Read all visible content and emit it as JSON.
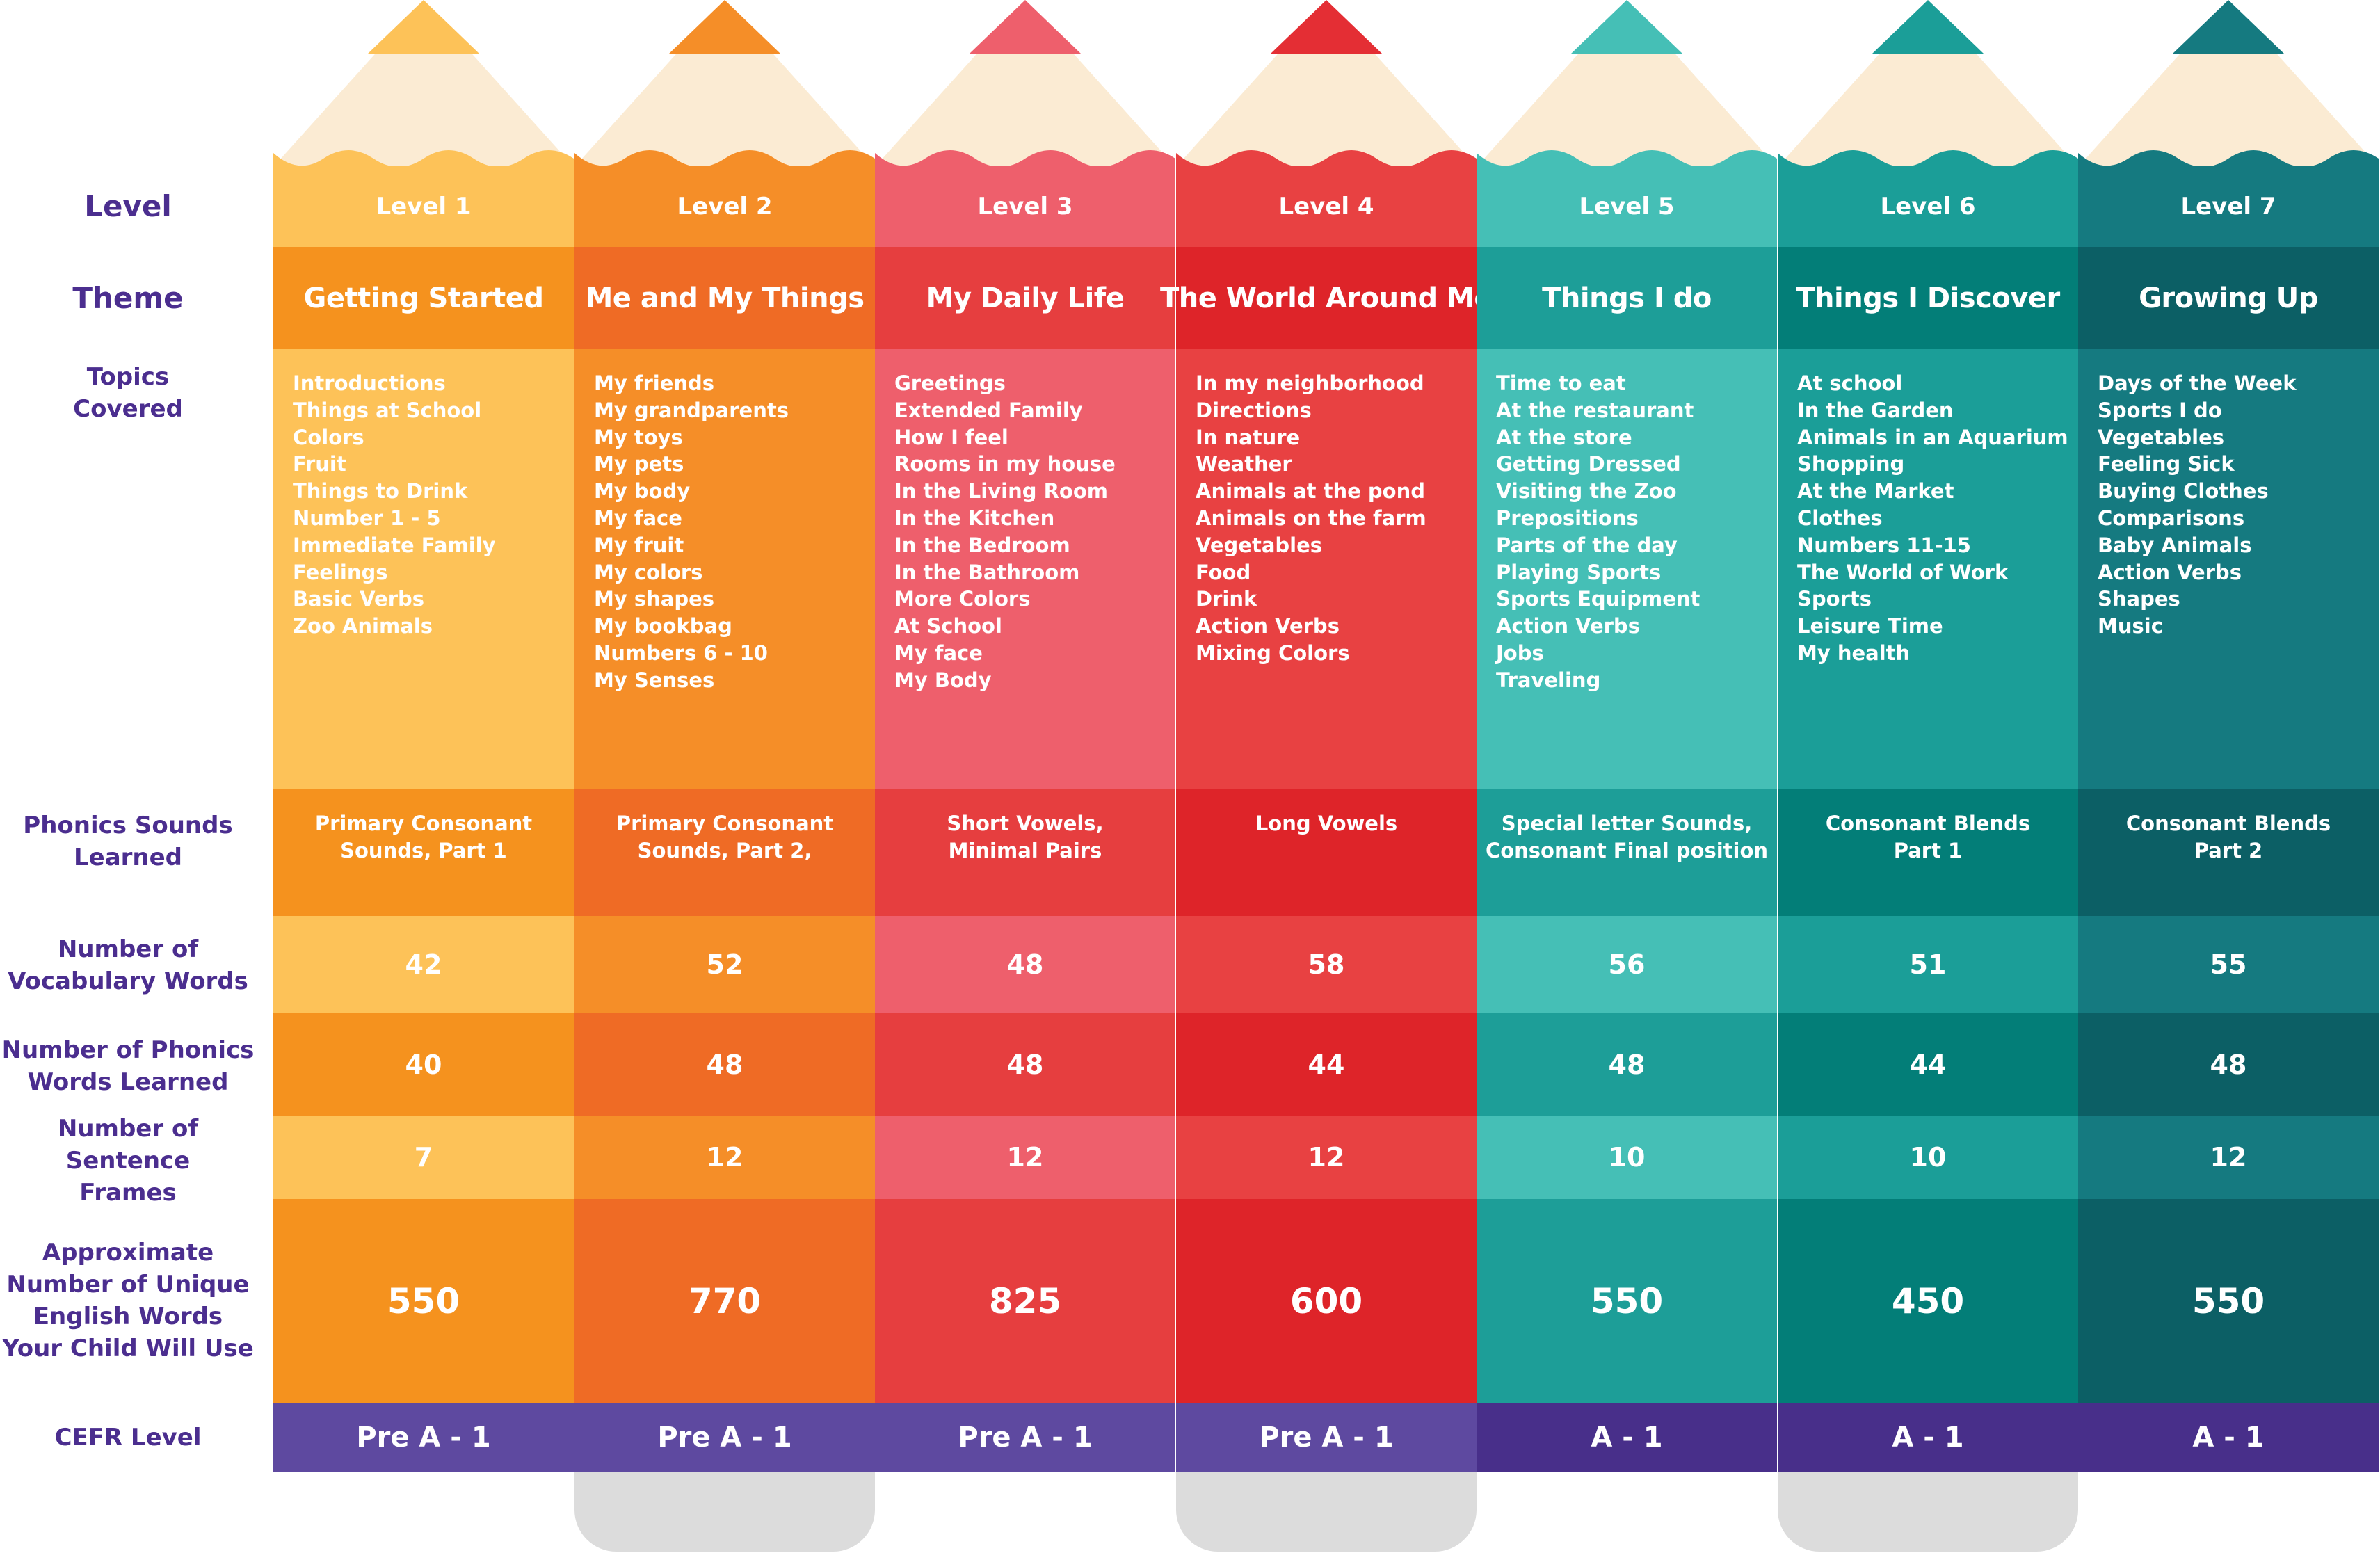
{
  "row_labels": {
    "level": "Level",
    "theme": "Theme",
    "topics": "Topics\nCovered",
    "phonics": "Phonics Sounds\nLearned",
    "vocab": "Number of\nVocabulary Words",
    "phonics_words": "Number of Phonics\nWords Learned",
    "frames": "Number of Sentence\nFrames",
    "unique_words": "Approximate\nNumber of Unique\nEnglish Words\nYour Child Will Use",
    "cefr": "CEFR Level"
  },
  "pencil_wood_color": "#fbebd3",
  "levels": [
    {
      "level": "Level 1",
      "theme": "Getting Started",
      "topics": [
        "Introductions",
        "Things at School",
        "Colors",
        "Fruit",
        "Things to Drink",
        "Number 1 - 5",
        "Immediate Family",
        "Feelings",
        "Basic Verbs",
        "Zoo Animals"
      ],
      "phonics": "Primary Consonant\nSounds, Part 1",
      "vocab": "42",
      "phonics_words": "40",
      "frames": "7",
      "unique_words": "550",
      "cefr": "Pre A - 1",
      "colors": {
        "light": "#fdc258",
        "dark": "#f5921e",
        "tip": "#fdc258",
        "cefr": "#5e49a0",
        "cap": "#ffffff"
      }
    },
    {
      "level": "Level 2",
      "theme": "Me and My Things",
      "topics": [
        "My friends",
        "My grandparents",
        "My toys",
        "My pets",
        "My body",
        "My face",
        "My fruit",
        "My colors",
        "My shapes",
        "My bookbag",
        "Numbers 6 - 10",
        "My Senses"
      ],
      "phonics": "Primary Consonant\nSounds, Part 2,",
      "vocab": "52",
      "phonics_words": "48",
      "frames": "12",
      "unique_words": "770",
      "cefr": "Pre A - 1",
      "colors": {
        "light": "#f58e28",
        "dark": "#ef6b25",
        "tip": "#f58e28",
        "cefr": "#5e49a0",
        "cap": "#dcdcdc"
      }
    },
    {
      "level": "Level 3",
      "theme": "My Daily Life",
      "topics": [
        "Greetings",
        "Extended Family",
        "How I feel",
        "Rooms in my house",
        "In the Living Room",
        "In the Kitchen",
        "In the Bedroom",
        "In the Bathroom",
        "More Colors",
        "At School",
        "My face",
        "My Body"
      ],
      "phonics": "Short Vowels,\nMinimal Pairs",
      "vocab": "48",
      "phonics_words": "48",
      "frames": "12",
      "unique_words": "825",
      "cefr": "Pre A - 1",
      "colors": {
        "light": "#ee5f6c",
        "dark": "#e63e3f",
        "tip": "#ee5f6c",
        "cefr": "#5e49a0",
        "cap": "#ffffff"
      }
    },
    {
      "level": "Level 4",
      "theme": "The World Around Me",
      "topics": [
        "In my neighborhood",
        "Directions",
        "In nature",
        "Weather",
        "Animals at the pond",
        "Animals on the farm",
        "Vegetables",
        "Food",
        "Drink",
        "Action Verbs",
        "Mixing Colors"
      ],
      "phonics": "Long Vowels",
      "vocab": "58",
      "phonics_words": "44",
      "frames": "12",
      "unique_words": "600",
      "cefr": "Pre A - 1",
      "colors": {
        "light": "#e84142",
        "dark": "#de2429",
        "tip": "#e42e34",
        "cefr": "#5e49a0",
        "cap": "#dcdcdc"
      }
    },
    {
      "level": "Level 5",
      "theme": "Things I do",
      "topics": [
        "Time to eat",
        "At the restaurant",
        "At the store",
        "Getting Dressed",
        "Visiting the Zoo",
        "Prepositions",
        "Parts of the day",
        "Playing Sports",
        "Sports Equipment",
        "Action Verbs",
        "Jobs",
        "Traveling"
      ],
      "phonics": "Special letter Sounds,\nConsonant Final position",
      "vocab": "56",
      "phonics_words": "48",
      "frames": "10",
      "unique_words": "550",
      "cefr": "A - 1",
      "colors": {
        "light": "#45bfb6",
        "dark": "#1d9e98",
        "tip": "#45bfb6",
        "cefr": "#482f8a",
        "cap": "#ffffff"
      }
    },
    {
      "level": "Level 6",
      "theme": "Things I Discover",
      "topics": [
        "At school",
        "In the Garden",
        "Animals in an Aquarium",
        "Shopping",
        "At the Market",
        "Clothes",
        "Numbers 11-15",
        "The World of Work",
        "Sports",
        "Leisure Time",
        "My health"
      ],
      "phonics": "Consonant Blends\nPart 1",
      "vocab": "51",
      "phonics_words": "44",
      "frames": "10",
      "unique_words": "450",
      "cefr": "A - 1",
      "colors": {
        "light": "#1b9e98",
        "dark": "#037e78",
        "tip": "#1b9e98",
        "cefr": "#482f8a",
        "cap": "#dcdcdc"
      }
    },
    {
      "level": "Level 7",
      "theme": "Growing Up",
      "topics": [
        "Days of the Week",
        "Sports I do",
        "Vegetables",
        "Feeling Sick",
        "Buying Clothes",
        "Comparisons",
        "Baby Animals",
        "Action Verbs",
        "Shapes",
        "Music"
      ],
      "phonics": "Consonant Blends\nPart 2",
      "vocab": "55",
      "phonics_words": "48",
      "frames": "12",
      "unique_words": "550",
      "cefr": "A - 1",
      "colors": {
        "light": "#157a80",
        "dark": "#0c5f65",
        "tip": "#157a80",
        "cefr": "#482f8a",
        "cap": "#ffffff"
      }
    }
  ]
}
